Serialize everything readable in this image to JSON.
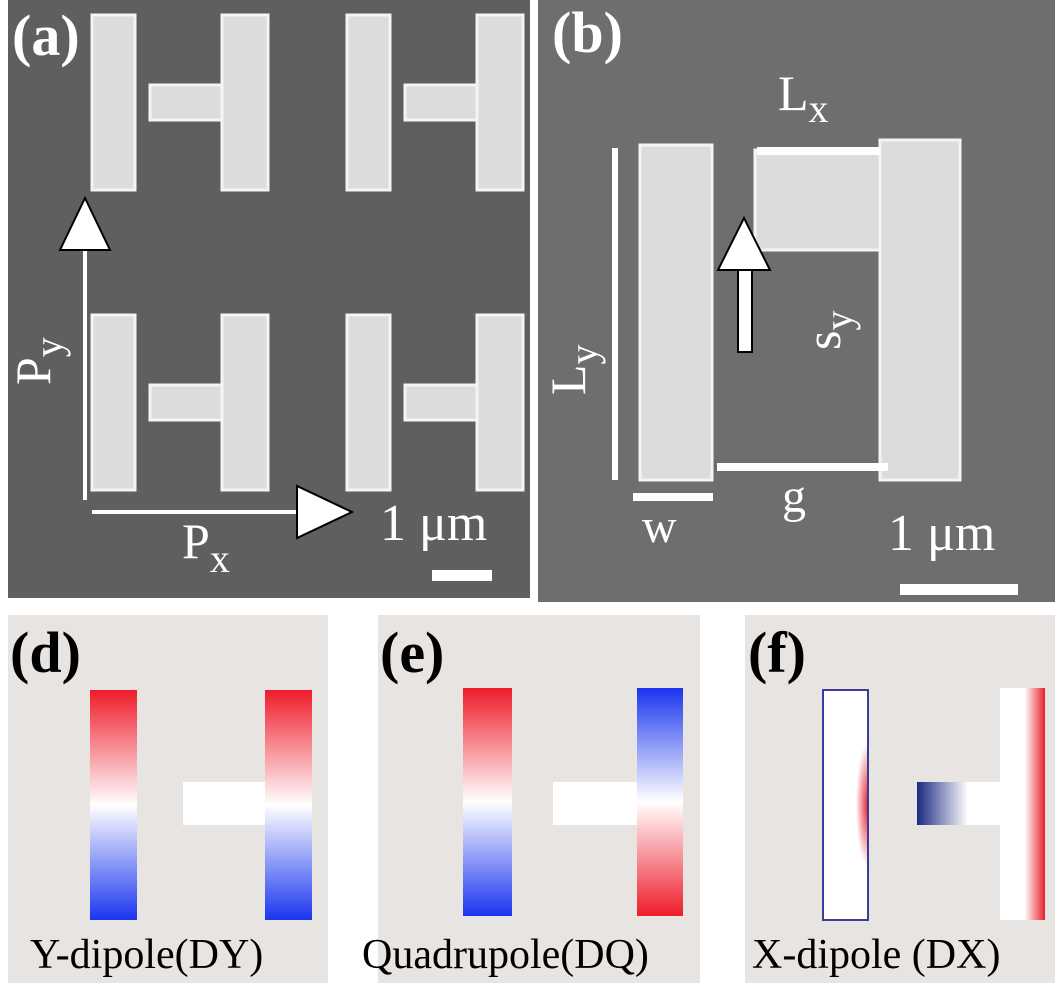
{
  "panels": {
    "a": {
      "label": "(a)",
      "py": {
        "main": "P",
        "sub": "y"
      },
      "px": {
        "main": "P",
        "sub": "x"
      },
      "scale": "1 μm"
    },
    "b": {
      "label": "(b)",
      "lx": {
        "main": "L",
        "sub": "x"
      },
      "ly": {
        "main": "L",
        "sub": "y"
      },
      "sy": {
        "main": "s",
        "sub": "y"
      },
      "w": "w",
      "g": "g",
      "scale": "1 μm"
    },
    "d": {
      "label": "(d)",
      "caption": "Y-dipole(DY)"
    },
    "e": {
      "label": "(e)",
      "caption": "Quadrupole(DQ)"
    },
    "f": {
      "label": "(f)",
      "caption": "X-dipole (DX)"
    }
  }
}
